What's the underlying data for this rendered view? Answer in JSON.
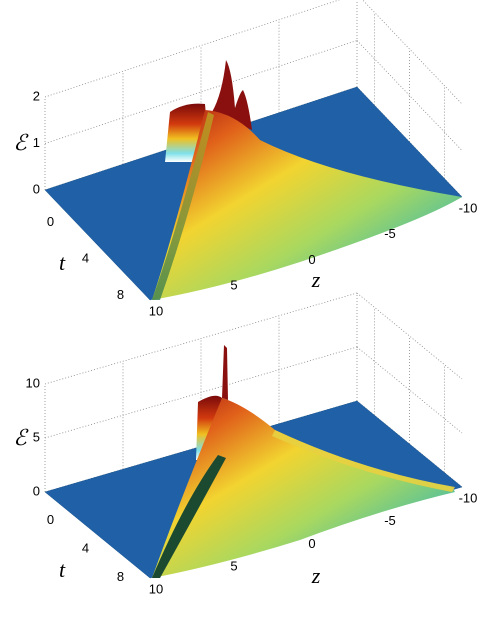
{
  "chart_data": [
    {
      "type": "surface",
      "xlabel": "z",
      "ylabel": "t",
      "zlabel": "ℰ",
      "xlim": [
        -10,
        10
      ],
      "xticks": [
        10,
        5,
        0,
        -5,
        -10
      ],
      "ylim": [
        -2,
        10
      ],
      "yticks": [
        0,
        4,
        8
      ],
      "zlim": [
        0,
        2
      ],
      "zticks": [
        0,
        1,
        2
      ],
      "grid": true
    },
    {
      "type": "surface",
      "xlabel": "z",
      "ylabel": "t",
      "zlabel": "ℰ",
      "xlim": [
        -10,
        10
      ],
      "xticks": [
        10,
        5,
        0,
        -5,
        -10
      ],
      "ylim": [
        -2,
        10
      ],
      "yticks": [
        0,
        4,
        8
      ],
      "zlim": [
        0,
        10
      ],
      "zticks": [
        0,
        5,
        10
      ],
      "grid": true
    }
  ]
}
